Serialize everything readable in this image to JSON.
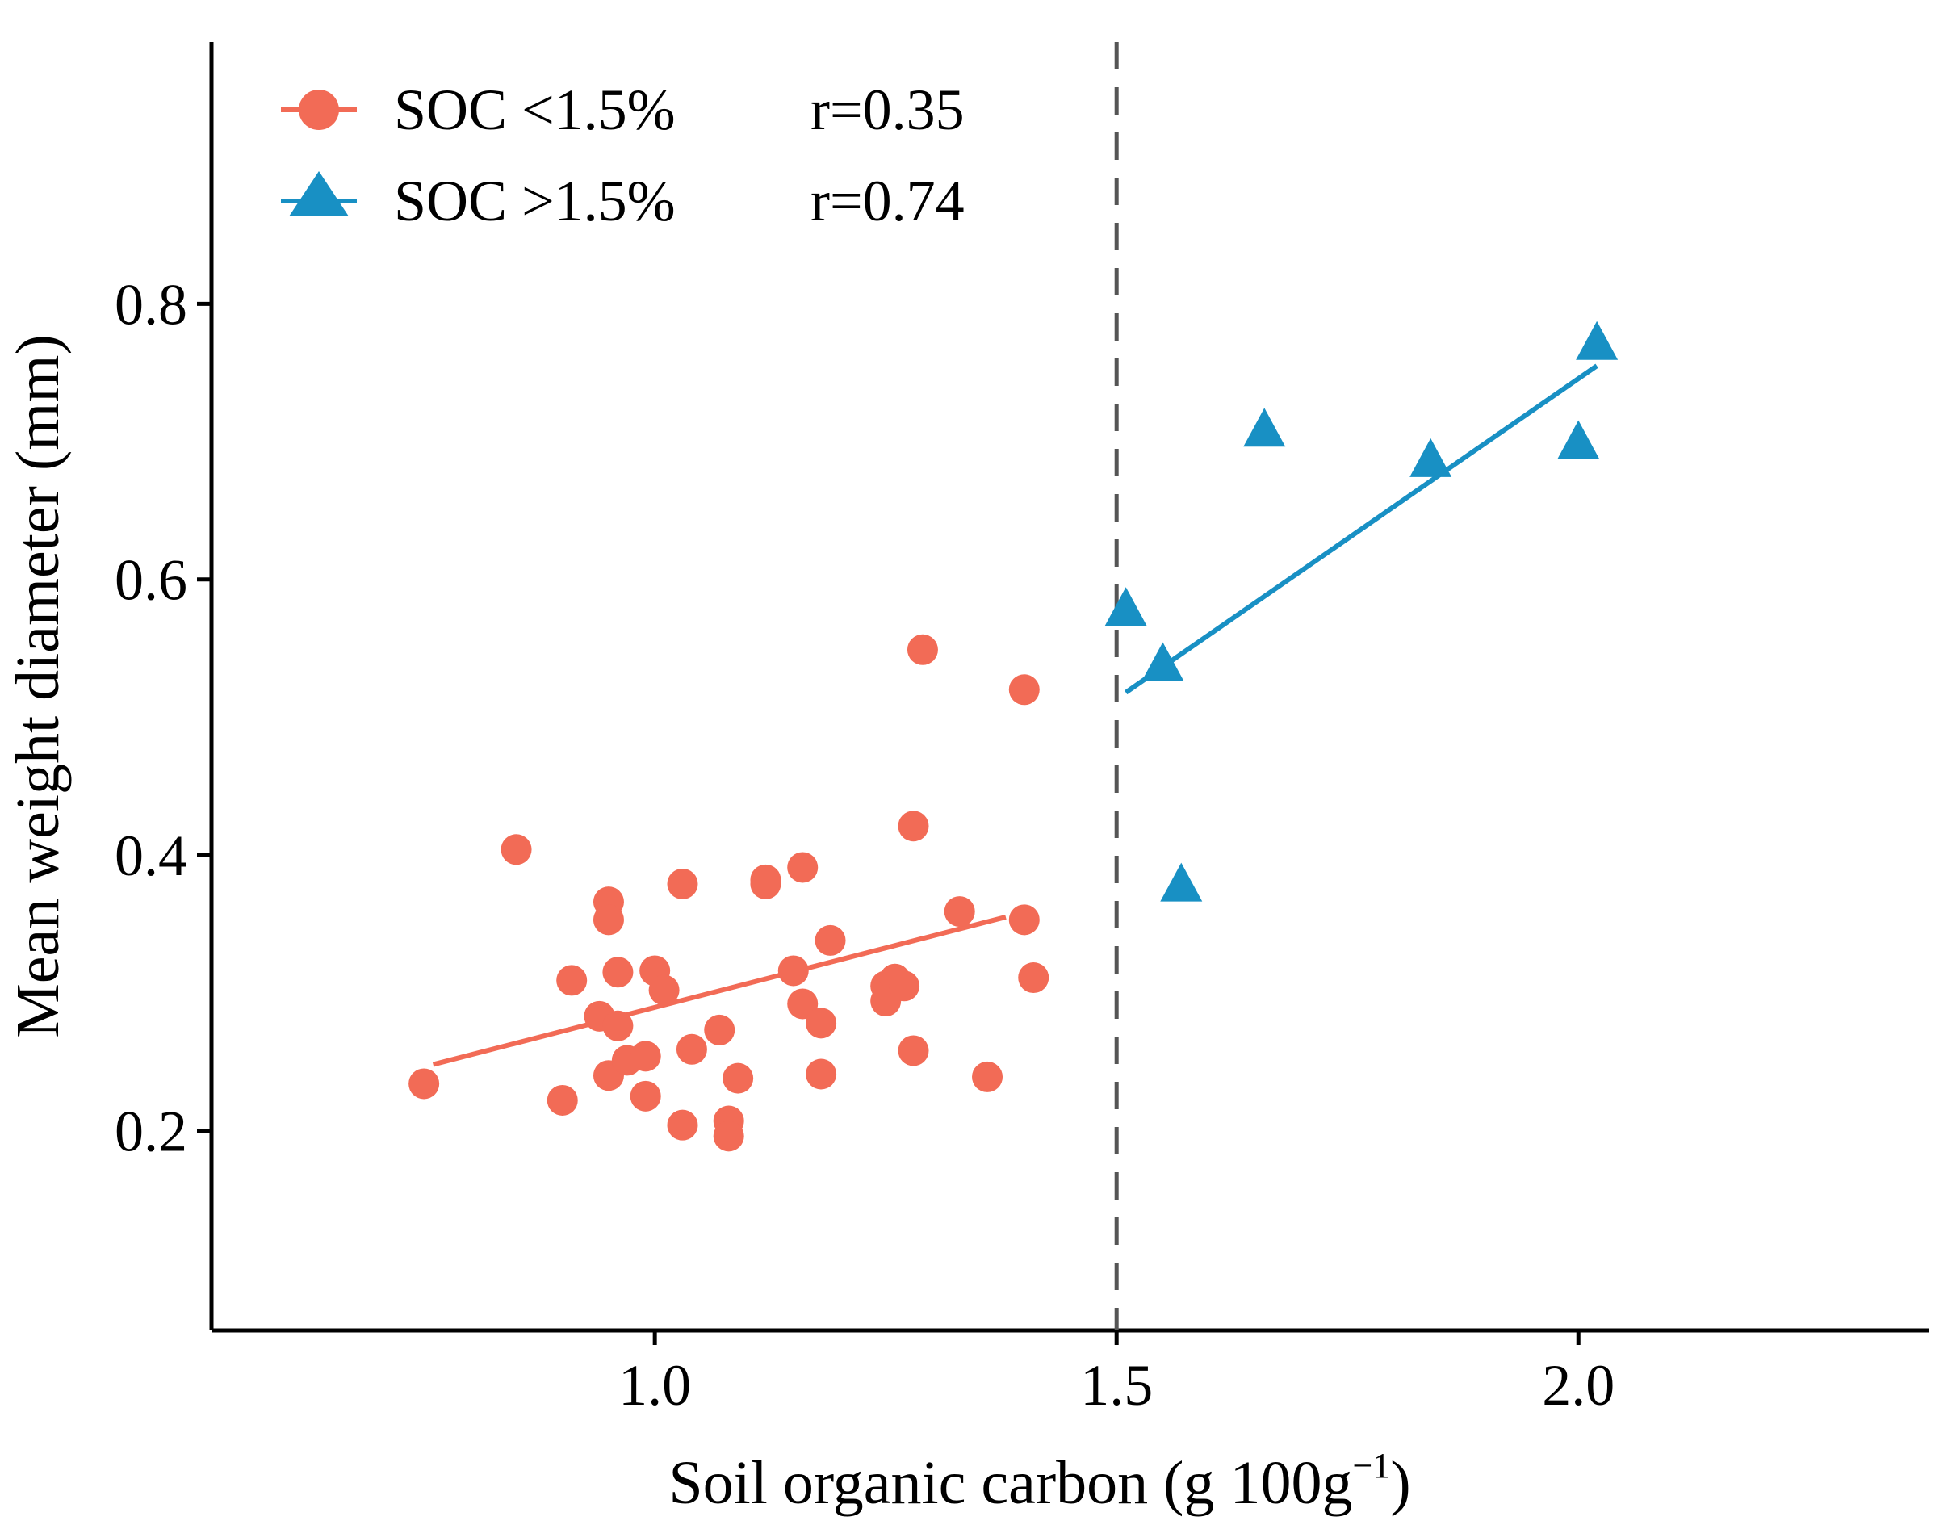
{
  "chart_data": {
    "type": "scatter",
    "title": "",
    "xlabel": "Soil organic carbon (g 100g",
    "xlabel_sup": "−1",
    "xlabel_close": ")",
    "ylabel": "Mean weight diameter (mm)",
    "xlim": [
      0.52,
      2.38
    ],
    "ylim": [
      0.055,
      0.99
    ],
    "x_ticks": [
      1.0,
      1.5,
      2.0
    ],
    "x_tick_labels": [
      "1.0",
      "1.5",
      "2.0"
    ],
    "y_ticks": [
      0.2,
      0.4,
      0.6,
      0.8
    ],
    "y_tick_labels": [
      "0.2",
      "0.4",
      "0.6",
      "0.8"
    ],
    "threshold_x": 1.5,
    "legend_position": "top-left",
    "series": [
      {
        "name": "SOC <1.5%",
        "r_label": "r=0.35",
        "marker": "circle",
        "color": "#F26B56",
        "fit": {
          "x": [
            0.76,
            1.38
          ],
          "y": [
            0.248,
            0.355
          ]
        },
        "points": [
          {
            "x": 0.75,
            "y": 0.234
          },
          {
            "x": 0.85,
            "y": 0.404
          },
          {
            "x": 0.9,
            "y": 0.222
          },
          {
            "x": 0.91,
            "y": 0.309
          },
          {
            "x": 0.94,
            "y": 0.283
          },
          {
            "x": 0.95,
            "y": 0.366
          },
          {
            "x": 0.95,
            "y": 0.353
          },
          {
            "x": 0.95,
            "y": 0.24
          },
          {
            "x": 0.96,
            "y": 0.315
          },
          {
            "x": 0.96,
            "y": 0.276
          },
          {
            "x": 0.97,
            "y": 0.251
          },
          {
            "x": 0.99,
            "y": 0.254
          },
          {
            "x": 0.99,
            "y": 0.225
          },
          {
            "x": 1.0,
            "y": 0.316
          },
          {
            "x": 1.01,
            "y": 0.302
          },
          {
            "x": 1.03,
            "y": 0.379
          },
          {
            "x": 1.03,
            "y": 0.204
          },
          {
            "x": 1.04,
            "y": 0.259
          },
          {
            "x": 1.07,
            "y": 0.273
          },
          {
            "x": 1.08,
            "y": 0.207
          },
          {
            "x": 1.08,
            "y": 0.196
          },
          {
            "x": 1.09,
            "y": 0.238
          },
          {
            "x": 1.12,
            "y": 0.382
          },
          {
            "x": 1.12,
            "y": 0.379
          },
          {
            "x": 1.15,
            "y": 0.316
          },
          {
            "x": 1.16,
            "y": 0.391
          },
          {
            "x": 1.16,
            "y": 0.292
          },
          {
            "x": 1.18,
            "y": 0.278
          },
          {
            "x": 1.18,
            "y": 0.241
          },
          {
            "x": 1.19,
            "y": 0.338
          },
          {
            "x": 1.25,
            "y": 0.305
          },
          {
            "x": 1.25,
            "y": 0.294
          },
          {
            "x": 1.26,
            "y": 0.31
          },
          {
            "x": 1.27,
            "y": 0.305
          },
          {
            "x": 1.28,
            "y": 0.421
          },
          {
            "x": 1.28,
            "y": 0.258
          },
          {
            "x": 1.29,
            "y": 0.549
          },
          {
            "x": 1.33,
            "y": 0.359
          },
          {
            "x": 1.36,
            "y": 0.239
          },
          {
            "x": 1.4,
            "y": 0.353
          },
          {
            "x": 1.4,
            "y": 0.52
          },
          {
            "x": 1.41,
            "y": 0.311
          }
        ]
      },
      {
        "name": "SOC >1.5%",
        "r_label": "r=0.74",
        "marker": "triangle",
        "color": "#1890C4",
        "fit": {
          "x": [
            1.51,
            2.02
          ],
          "y": [
            0.518,
            0.755
          ]
        },
        "points": [
          {
            "x": 1.51,
            "y": 0.577
          },
          {
            "x": 1.55,
            "y": 0.537
          },
          {
            "x": 1.57,
            "y": 0.377
          },
          {
            "x": 1.66,
            "y": 0.707
          },
          {
            "x": 1.84,
            "y": 0.685
          },
          {
            "x": 2.0,
            "y": 0.698
          },
          {
            "x": 2.02,
            "y": 0.77
          }
        ]
      }
    ]
  }
}
